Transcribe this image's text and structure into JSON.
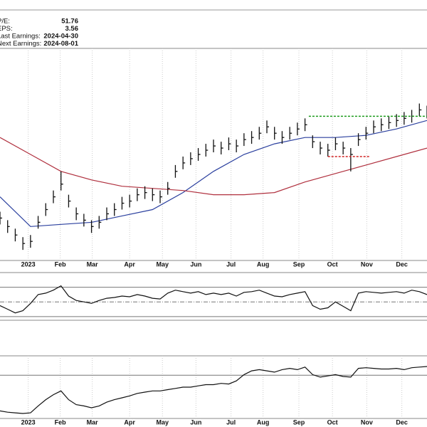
{
  "info": [
    {
      "label": "P/E:",
      "value": "51.76"
    },
    {
      "label": "EPS:",
      "value": "3.56"
    },
    {
      "label": "Last Earnings:",
      "value": "2024-04-30"
    },
    {
      "label": "Next Earnings:",
      "value": "2024-08-01"
    }
  ],
  "chart_data": [
    {
      "type": "ohlc",
      "x": [
        0,
        1,
        2,
        3,
        4,
        5,
        6,
        7,
        8,
        9,
        10,
        11,
        12,
        13,
        14,
        15,
        16,
        17,
        18,
        19,
        20,
        21,
        22,
        23,
        24,
        25,
        26,
        27,
        28,
        29,
        30,
        31,
        32,
        33,
        34,
        35,
        36,
        37,
        38,
        39,
        40,
        41,
        42,
        43,
        44,
        45,
        46,
        47,
        48,
        49,
        50,
        51,
        52,
        53,
        54,
        55,
        56
      ],
      "high": [
        23,
        19,
        15,
        11,
        12,
        21,
        27,
        33,
        42,
        31,
        25,
        22,
        19,
        21,
        25,
        27,
        30,
        31,
        34,
        35,
        34,
        33,
        37,
        45,
        49,
        51,
        53,
        55,
        57,
        56,
        58,
        57,
        60,
        61,
        63,
        66,
        63,
        61,
        63,
        65,
        67,
        59,
        56,
        55,
        58,
        56,
        53,
        60,
        63,
        66,
        67,
        68,
        69,
        70,
        71,
        74,
        73
      ],
      "low": [
        17,
        13,
        9,
        5,
        6,
        15,
        21,
        27,
        33,
        25,
        19,
        16,
        13,
        15,
        19,
        21,
        24,
        25,
        28,
        29,
        28,
        27,
        31,
        39,
        43,
        45,
        47,
        49,
        51,
        50,
        52,
        51,
        54,
        55,
        57,
        60,
        57,
        55,
        57,
        59,
        61,
        53,
        50,
        49,
        52,
        50,
        42,
        54,
        57,
        60,
        61,
        62,
        63,
        64,
        65,
        68,
        67
      ],
      "close": [
        20,
        16,
        12,
        8,
        9,
        18,
        24,
        30,
        36,
        28,
        22,
        19,
        16,
        18,
        22,
        24,
        27,
        28,
        31,
        32,
        31,
        30,
        34,
        42,
        46,
        48,
        50,
        52,
        54,
        53,
        55,
        54,
        57,
        58,
        60,
        63,
        60,
        58,
        60,
        62,
        64,
        56,
        53,
        52,
        55,
        53,
        50,
        57,
        60,
        63,
        64,
        65,
        66,
        67,
        68,
        71,
        70
      ],
      "color": "#111111",
      "overlays": [
        {
          "color": "#2a3f9e",
          "x": [
            0,
            4,
            8,
            12,
            16,
            20,
            24,
            28,
            32,
            36,
            40,
            44,
            48,
            52,
            56
          ],
          "values": [
            30,
            16,
            17,
            18,
            21,
            24,
            32,
            42,
            50,
            55,
            58,
            58,
            59,
            62,
            66
          ]
        },
        {
          "color": "#b0303e",
          "x": [
            0,
            4,
            8,
            12,
            16,
            20,
            24,
            28,
            32,
            36,
            40,
            44,
            48,
            52,
            56
          ],
          "values": [
            58,
            50,
            42,
            38,
            35,
            34,
            33,
            31,
            31,
            32,
            37,
            41,
            45,
            49,
            53
          ]
        }
      ],
      "levels": [
        {
          "color": "#1a9a1a",
          "x": [
            40.5,
            56
          ],
          "value": 68
        },
        {
          "color": "#d02020",
          "x": [
            43,
            48.6
          ],
          "value": 49
        }
      ],
      "xlim": [
        0,
        56
      ],
      "ylim": [
        0,
        100
      ],
      "xticks": [
        {
          "value": 3.7,
          "label": "2023"
        },
        {
          "value": 7.9,
          "label": "Feb"
        },
        {
          "value": 12.1,
          "label": "Mar"
        },
        {
          "value": 17,
          "label": "Apr"
        },
        {
          "value": 21.3,
          "label": "May"
        },
        {
          "value": 25.7,
          "label": "Jun"
        },
        {
          "value": 30.3,
          "label": "Jul"
        },
        {
          "value": 34.5,
          "label": "Aug"
        },
        {
          "value": 39.2,
          "label": "Sep"
        },
        {
          "value": 43.6,
          "label": "Oct"
        },
        {
          "value": 48.1,
          "label": "Nov"
        },
        {
          "value": 52.7,
          "label": "Dec"
        }
      ],
      "grid": true
    },
    {
      "type": "line",
      "x": [
        0,
        1,
        2,
        3,
        4,
        5,
        6,
        7,
        8,
        9,
        10,
        11,
        12,
        13,
        14,
        15,
        16,
        17,
        18,
        19,
        20,
        21,
        22,
        23,
        24,
        25,
        26,
        27,
        28,
        29,
        30,
        31,
        32,
        33,
        34,
        35,
        36,
        37,
        38,
        39,
        40,
        41,
        42,
        43,
        44,
        45,
        46,
        47,
        48,
        49,
        50,
        51,
        52,
        53,
        54,
        55,
        56
      ],
      "values": [
        45,
        40,
        35,
        38,
        48,
        60,
        62,
        66,
        72,
        58,
        52,
        50,
        48,
        52,
        55,
        56,
        58,
        57,
        60,
        58,
        55,
        54,
        62,
        66,
        64,
        62,
        64,
        60,
        62,
        60,
        62,
        58,
        63,
        64,
        66,
        62,
        58,
        57,
        60,
        62,
        64,
        45,
        40,
        42,
        50,
        44,
        38,
        62,
        64,
        63,
        62,
        63,
        64,
        62,
        66,
        64,
        60
      ],
      "color": "#111111",
      "xlim": [
        0,
        56
      ],
      "ylim": [
        25,
        90
      ],
      "yticks": [
        30,
        50,
        70
      ]
    },
    {
      "type": "line",
      "x": [
        0,
        1,
        2,
        3,
        4,
        5,
        6,
        7,
        8,
        9,
        10,
        11,
        12,
        13,
        14,
        15,
        16,
        17,
        18,
        19,
        20,
        21,
        22,
        23,
        24,
        25,
        26,
        27,
        28,
        29,
        30,
        31,
        32,
        33,
        34,
        35,
        36,
        37,
        38,
        39,
        40,
        41,
        42,
        43,
        44,
        45,
        46,
        47,
        48,
        49,
        50,
        51,
        52,
        53,
        54,
        55,
        56
      ],
      "values": [
        12,
        10,
        9,
        8,
        9,
        20,
        30,
        38,
        44,
        30,
        22,
        20,
        17,
        20,
        26,
        30,
        33,
        36,
        40,
        42,
        44,
        44,
        46,
        48,
        50,
        50,
        52,
        54,
        54,
        56,
        55,
        60,
        70,
        76,
        78,
        76,
        74,
        78,
        80,
        78,
        82,
        70,
        66,
        68,
        70,
        67,
        66,
        80,
        81,
        80,
        79,
        79,
        80,
        78,
        81,
        82,
        83
      ],
      "color": "#111111",
      "xlim": [
        0,
        56
      ],
      "ylim": [
        0,
        100
      ],
      "yticks": [
        69
      ],
      "xticks": [
        {
          "value": 3.7,
          "label": "2023"
        },
        {
          "value": 7.9,
          "label": "Feb"
        },
        {
          "value": 12.1,
          "label": "Mar"
        },
        {
          "value": 17,
          "label": "Apr"
        },
        {
          "value": 21.3,
          "label": "May"
        },
        {
          "value": 25.7,
          "label": "Jun"
        },
        {
          "value": 30.3,
          "label": "Jul"
        },
        {
          "value": 34.5,
          "label": "Aug"
        },
        {
          "value": 39.2,
          "label": "Sep"
        },
        {
          "value": 43.6,
          "label": "Oct"
        },
        {
          "value": 48.1,
          "label": "Nov"
        },
        {
          "value": 52.7,
          "label": "Dec"
        }
      ],
      "grid": true
    }
  ]
}
